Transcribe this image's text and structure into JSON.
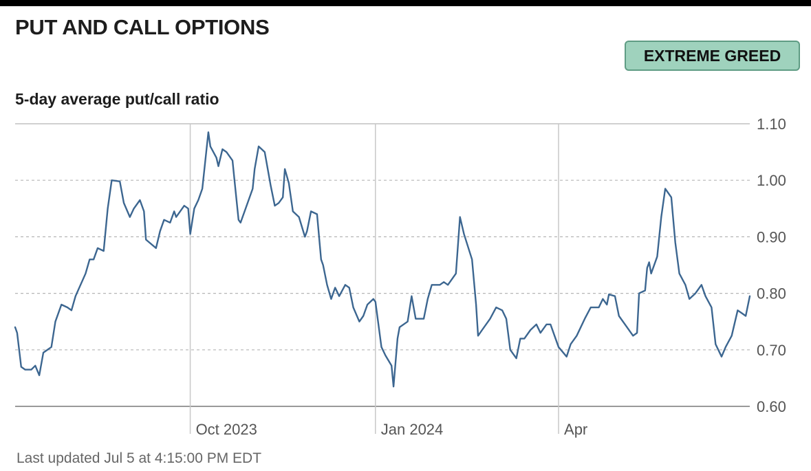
{
  "header": {
    "title": "PUT AND CALL OPTIONS",
    "badge": "EXTREME GREED",
    "badge_color": "#9fd2bd"
  },
  "subtitle": "5-day average put/call ratio",
  "footer": "Last updated Jul 5 at 4:15:00 PM EDT",
  "colors": {
    "line": "#3c6690",
    "grid": "#b5b5b5",
    "axis": "#999999",
    "tick_text": "#555555"
  },
  "chart_data": {
    "type": "line",
    "title": "5-day average put/call ratio",
    "xlabel": "",
    "ylabel": "",
    "ylim": [
      0.6,
      1.1
    ],
    "xlim": [
      "2023-07-06",
      "2024-07-05"
    ],
    "y_ticks": [
      "1.10",
      "1.00",
      "0.90",
      "0.80",
      "0.70",
      "0.60"
    ],
    "x_ticks": [
      {
        "date": "2023-10-01",
        "label": "Oct 2023"
      },
      {
        "date": "2024-01-01",
        "label": "Jan 2024"
      },
      {
        "date": "2024-04-01",
        "label": "Apr"
      }
    ],
    "grid": true,
    "series": [
      {
        "name": "",
        "points": [
          [
            "2023-07-06",
            0.74
          ],
          [
            "2023-07-07",
            0.73
          ],
          [
            "2023-07-09",
            0.67
          ],
          [
            "2023-07-11",
            0.665
          ],
          [
            "2023-07-14",
            0.665
          ],
          [
            "2023-07-16",
            0.672
          ],
          [
            "2023-07-18",
            0.655
          ],
          [
            "2023-07-20",
            0.695
          ],
          [
            "2023-07-24",
            0.705
          ],
          [
            "2023-07-26",
            0.75
          ],
          [
            "2023-07-29",
            0.78
          ],
          [
            "2023-08-01",
            0.775
          ],
          [
            "2023-08-03",
            0.77
          ],
          [
            "2023-08-05",
            0.795
          ],
          [
            "2023-08-10",
            0.835
          ],
          [
            "2023-08-12",
            0.86
          ],
          [
            "2023-08-14",
            0.86
          ],
          [
            "2023-08-16",
            0.88
          ],
          [
            "2023-08-19",
            0.875
          ],
          [
            "2023-08-21",
            0.95
          ],
          [
            "2023-08-23",
            1.0
          ],
          [
            "2023-08-27",
            0.998
          ],
          [
            "2023-08-29",
            0.96
          ],
          [
            "2023-09-01",
            0.935
          ],
          [
            "2023-09-03",
            0.95
          ],
          [
            "2023-09-06",
            0.965
          ],
          [
            "2023-09-08",
            0.945
          ],
          [
            "2023-09-09",
            0.895
          ],
          [
            "2023-09-14",
            0.88
          ],
          [
            "2023-09-16",
            0.91
          ],
          [
            "2023-09-18",
            0.93
          ],
          [
            "2023-09-21",
            0.925
          ],
          [
            "2023-09-23",
            0.945
          ],
          [
            "2023-09-24",
            0.935
          ],
          [
            "2023-09-28",
            0.955
          ],
          [
            "2023-09-30",
            0.95
          ],
          [
            "2023-10-01",
            0.905
          ],
          [
            "2023-10-03",
            0.95
          ],
          [
            "2023-10-05",
            0.965
          ],
          [
            "2023-10-07",
            0.985
          ],
          [
            "2023-10-10",
            1.085
          ],
          [
            "2023-10-11",
            1.06
          ],
          [
            "2023-10-14",
            1.04
          ],
          [
            "2023-10-15",
            1.025
          ],
          [
            "2023-10-17",
            1.055
          ],
          [
            "2023-10-19",
            1.05
          ],
          [
            "2023-10-22",
            1.035
          ],
          [
            "2023-10-23",
            1.0
          ],
          [
            "2023-10-25",
            0.93
          ],
          [
            "2023-10-26",
            0.925
          ],
          [
            "2023-10-28",
            0.945
          ],
          [
            "2023-11-01",
            0.985
          ],
          [
            "2023-11-02",
            1.02
          ],
          [
            "2023-11-04",
            1.06
          ],
          [
            "2023-11-07",
            1.05
          ],
          [
            "2023-11-10",
            0.99
          ],
          [
            "2023-11-12",
            0.955
          ],
          [
            "2023-11-14",
            0.96
          ],
          [
            "2023-11-16",
            0.97
          ],
          [
            "2023-11-17",
            1.02
          ],
          [
            "2023-11-19",
            0.995
          ],
          [
            "2023-11-21",
            0.945
          ],
          [
            "2023-11-24",
            0.935
          ],
          [
            "2023-11-27",
            0.9
          ],
          [
            "2023-11-28",
            0.91
          ],
          [
            "2023-11-30",
            0.945
          ],
          [
            "2023-12-03",
            0.94
          ],
          [
            "2023-12-05",
            0.86
          ],
          [
            "2023-12-06",
            0.85
          ],
          [
            "2023-12-08",
            0.815
          ],
          [
            "2023-12-10",
            0.79
          ],
          [
            "2023-12-12",
            0.81
          ],
          [
            "2023-12-14",
            0.795
          ],
          [
            "2023-12-17",
            0.815
          ],
          [
            "2023-12-19",
            0.81
          ],
          [
            "2023-12-21",
            0.775
          ],
          [
            "2023-12-24",
            0.75
          ],
          [
            "2023-12-26",
            0.76
          ],
          [
            "2023-12-28",
            0.78
          ],
          [
            "2023-12-31",
            0.79
          ],
          [
            "2024-01-01",
            0.785
          ],
          [
            "2024-01-04",
            0.705
          ],
          [
            "2024-01-06",
            0.69
          ],
          [
            "2024-01-09",
            0.672
          ],
          [
            "2024-01-10",
            0.635
          ],
          [
            "2024-01-12",
            0.72
          ],
          [
            "2024-01-13",
            0.74
          ],
          [
            "2024-01-17",
            0.75
          ],
          [
            "2024-01-19",
            0.795
          ],
          [
            "2024-01-21",
            0.755
          ],
          [
            "2024-01-25",
            0.755
          ],
          [
            "2024-01-27",
            0.79
          ],
          [
            "2024-01-29",
            0.815
          ],
          [
            "2024-02-02",
            0.815
          ],
          [
            "2024-02-04",
            0.82
          ],
          [
            "2024-02-06",
            0.815
          ],
          [
            "2024-02-10",
            0.835
          ],
          [
            "2024-02-12",
            0.935
          ],
          [
            "2024-02-14",
            0.905
          ],
          [
            "2024-02-18",
            0.86
          ],
          [
            "2024-02-20",
            0.78
          ],
          [
            "2024-02-21",
            0.725
          ],
          [
            "2024-02-23",
            0.735
          ],
          [
            "2024-02-27",
            0.755
          ],
          [
            "2024-03-01",
            0.775
          ],
          [
            "2024-03-04",
            0.77
          ],
          [
            "2024-03-06",
            0.755
          ],
          [
            "2024-03-08",
            0.7
          ],
          [
            "2024-03-11",
            0.685
          ],
          [
            "2024-03-13",
            0.72
          ],
          [
            "2024-03-15",
            0.72
          ],
          [
            "2024-03-18",
            0.735
          ],
          [
            "2024-03-21",
            0.745
          ],
          [
            "2024-03-23",
            0.73
          ],
          [
            "2024-03-26",
            0.745
          ],
          [
            "2024-03-28",
            0.745
          ],
          [
            "2024-04-01",
            0.705
          ],
          [
            "2024-04-05",
            0.688
          ],
          [
            "2024-04-07",
            0.71
          ],
          [
            "2024-04-10",
            0.725
          ],
          [
            "2024-04-14",
            0.755
          ],
          [
            "2024-04-17",
            0.775
          ],
          [
            "2024-04-21",
            0.775
          ],
          [
            "2024-04-23",
            0.79
          ],
          [
            "2024-04-25",
            0.78
          ],
          [
            "2024-04-26",
            0.798
          ],
          [
            "2024-04-29",
            0.795
          ],
          [
            "2024-05-01",
            0.76
          ],
          [
            "2024-05-04",
            0.745
          ],
          [
            "2024-05-08",
            0.725
          ],
          [
            "2024-05-10",
            0.73
          ],
          [
            "2024-05-11",
            0.8
          ],
          [
            "2024-05-14",
            0.805
          ],
          [
            "2024-05-15",
            0.845
          ],
          [
            "2024-05-16",
            0.855
          ],
          [
            "2024-05-17",
            0.835
          ],
          [
            "2024-05-20",
            0.865
          ],
          [
            "2024-05-22",
            0.935
          ],
          [
            "2024-05-24",
            0.985
          ],
          [
            "2024-05-27",
            0.97
          ],
          [
            "2024-05-29",
            0.89
          ],
          [
            "2024-05-31",
            0.835
          ],
          [
            "2024-06-03",
            0.815
          ],
          [
            "2024-06-05",
            0.79
          ],
          [
            "2024-06-08",
            0.8
          ],
          [
            "2024-06-11",
            0.815
          ],
          [
            "2024-06-13",
            0.795
          ],
          [
            "2024-06-16",
            0.775
          ],
          [
            "2024-06-18",
            0.71
          ],
          [
            "2024-06-21",
            0.688
          ],
          [
            "2024-06-23",
            0.705
          ],
          [
            "2024-06-26",
            0.725
          ],
          [
            "2024-06-29",
            0.77
          ],
          [
            "2024-07-01",
            0.765
          ],
          [
            "2024-07-03",
            0.76
          ],
          [
            "2024-07-05",
            0.795
          ]
        ]
      }
    ]
  }
}
